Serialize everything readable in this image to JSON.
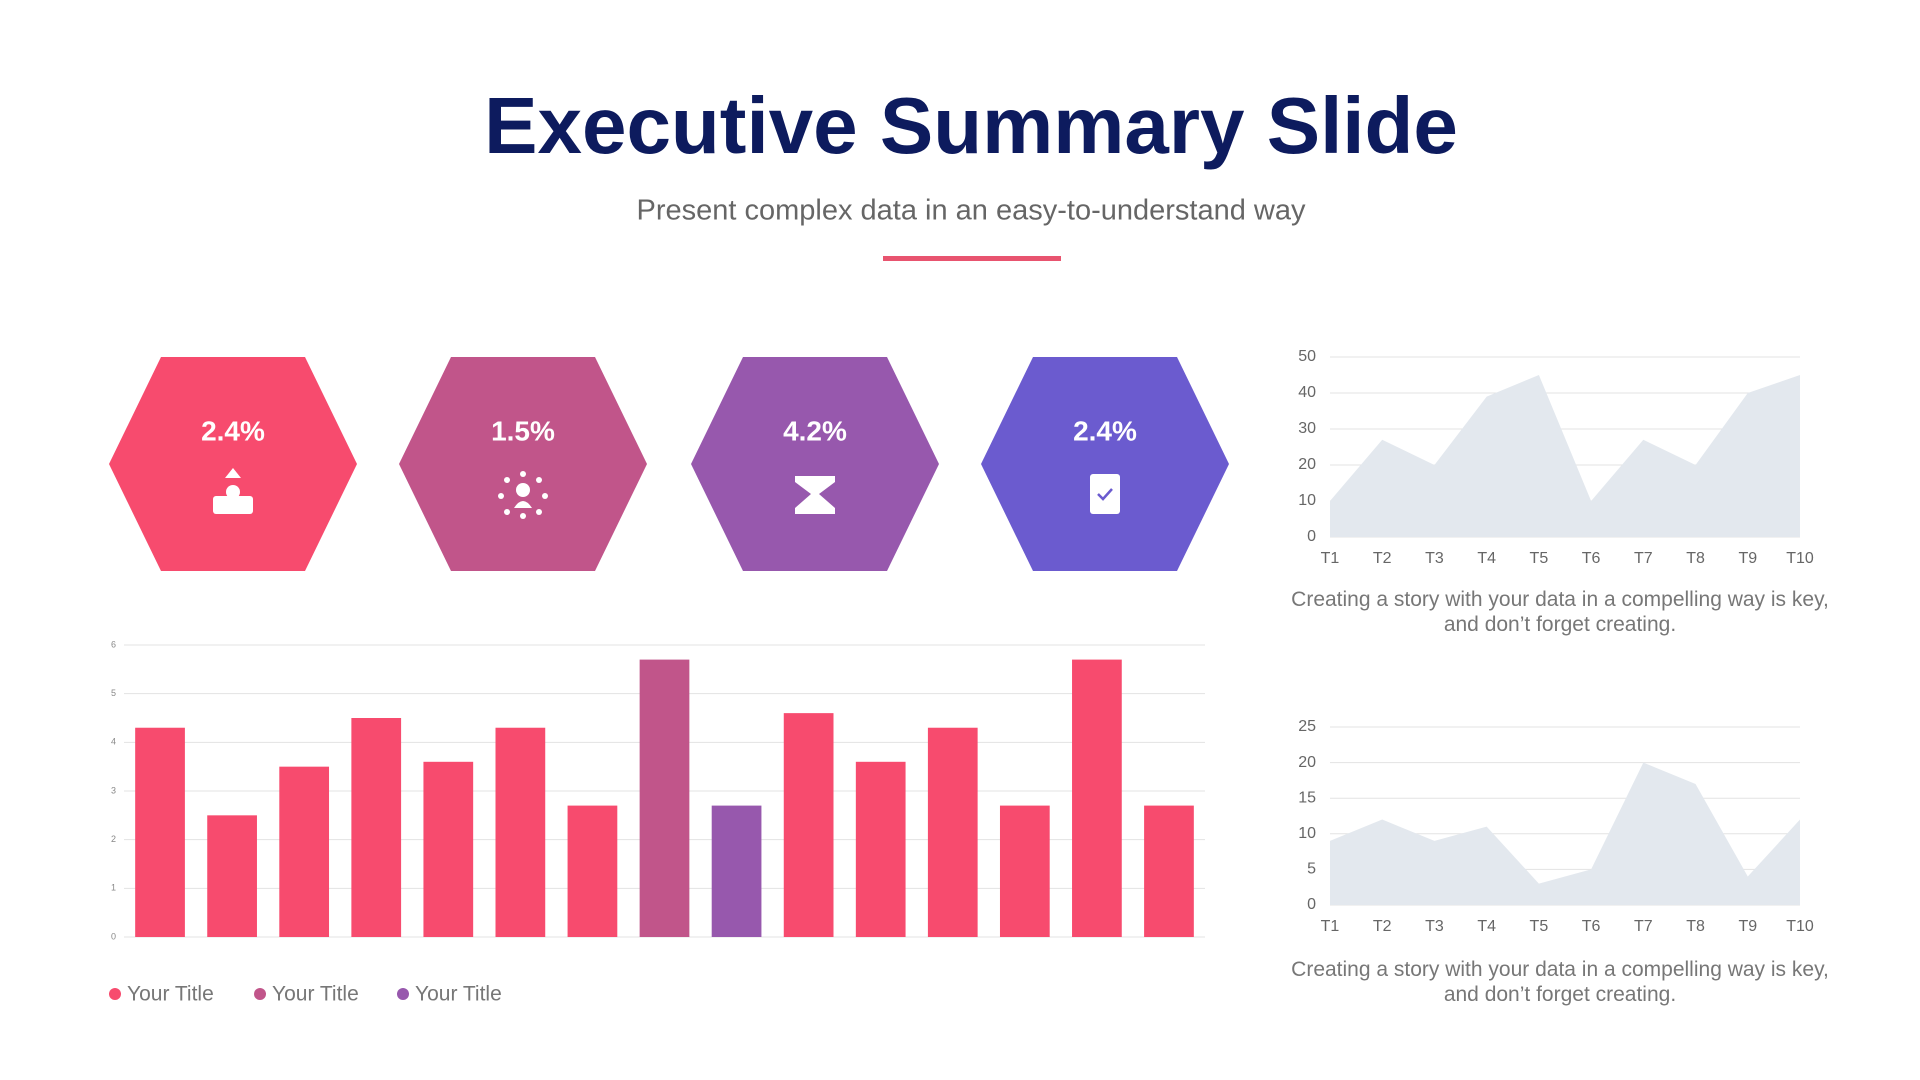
{
  "header": {
    "title": "Executive Summary Slide",
    "subtitle": "Present complex data in an easy-to-understand way"
  },
  "kpis": [
    "2.4%",
    "1.5%",
    "4.2%",
    "2.4%"
  ],
  "chart_data": [
    {
      "type": "bar",
      "categories": [
        null,
        null,
        null,
        null,
        null,
        null,
        null,
        null,
        null,
        null,
        null,
        null,
        null,
        null,
        null
      ],
      "series": [
        {
          "name": "Your Title",
          "color": "#f74b6e",
          "values": [
            4.3,
            2.5,
            3.5,
            4.5,
            3.6,
            4.3,
            2.7,
            null,
            null,
            4.6,
            3.6,
            4.3,
            2.7,
            5.7,
            2.7
          ]
        },
        {
          "name": "Your Title",
          "color": "#c1558a",
          "values": [
            null,
            null,
            null,
            null,
            null,
            null,
            null,
            5.7,
            null,
            null,
            null,
            null,
            null,
            null,
            null
          ]
        },
        {
          "name": "Your Title",
          "color": "#9758ad",
          "values": [
            null,
            null,
            null,
            null,
            null,
            null,
            null,
            null,
            2.7,
            null,
            null,
            null,
            null,
            null,
            null
          ]
        }
      ],
      "ylim": [
        0,
        6
      ],
      "yticks": [
        0,
        1,
        2,
        3,
        4,
        5,
        6
      ],
      "grid": true
    },
    {
      "type": "area",
      "color": "#e3e8ee",
      "categories": [
        "T1",
        "T2",
        "T3",
        "T4",
        "T5",
        "T6",
        "T7",
        "T8",
        "T9",
        "T10"
      ],
      "values": [
        10,
        27,
        20,
        39,
        45,
        10,
        27,
        20,
        40,
        45
      ],
      "ylim": [
        0,
        50
      ],
      "yticks": [
        0,
        10,
        20,
        30,
        40,
        50
      ],
      "grid": true,
      "caption": "Creating a story with your data in a compelling way is key, and don’t forget creating."
    },
    {
      "type": "area",
      "color": "#e3e8ee",
      "categories": [
        "T1",
        "T2",
        "T3",
        "T4",
        "T5",
        "T6",
        "T7",
        "T8",
        "T9",
        "T10"
      ],
      "values": [
        9,
        12,
        9,
        11,
        3,
        5,
        20,
        17,
        4,
        12
      ],
      "ylim": [
        0,
        25
      ],
      "yticks": [
        0,
        5,
        10,
        15,
        20,
        25
      ],
      "grid": true,
      "caption": "Creating a story with your data in a compelling way is key, and don’t forget creating."
    }
  ]
}
